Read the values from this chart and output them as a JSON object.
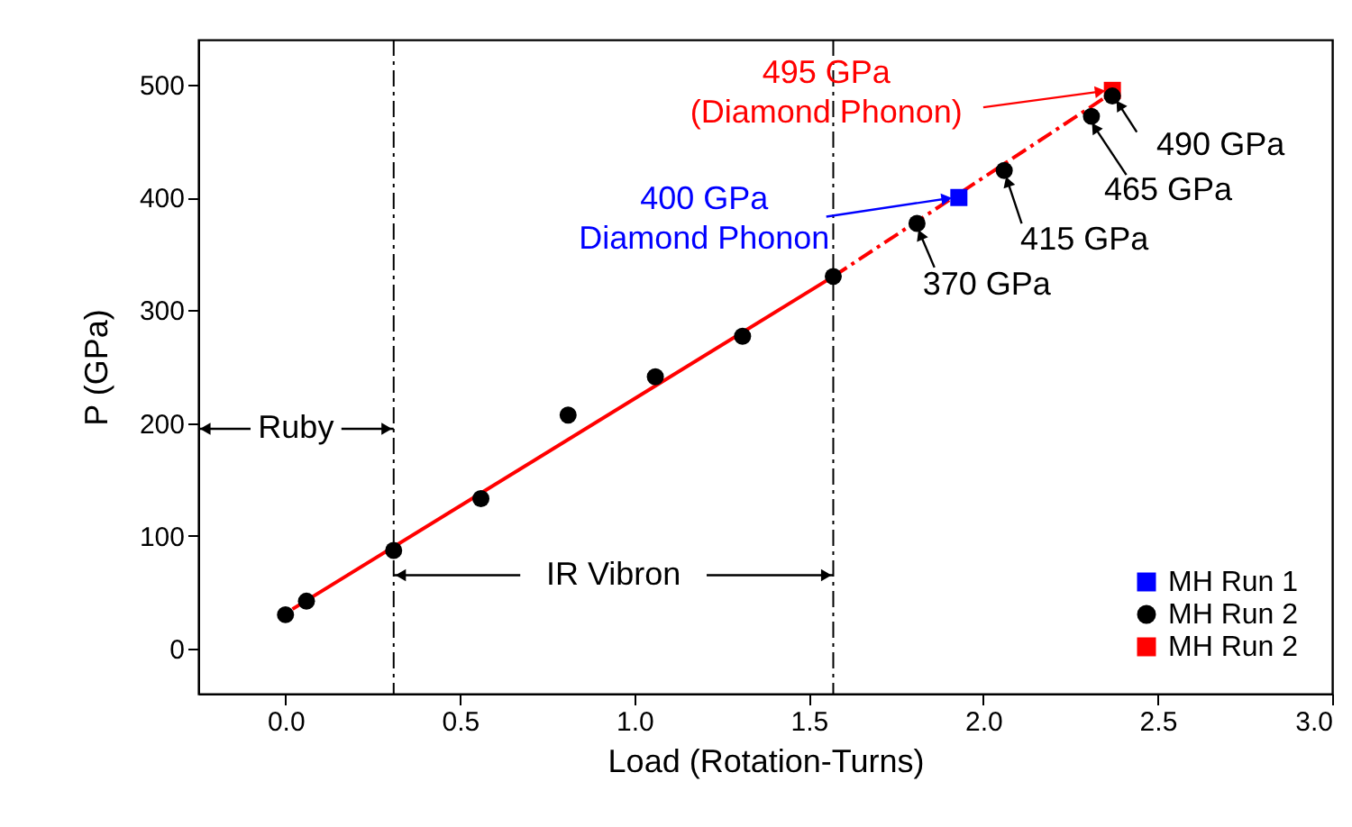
{
  "chart_data": {
    "type": "scatter",
    "xlabel": "Load (Rotation-Turns)",
    "ylabel": "P (GPa)",
    "xlim": [
      -0.25,
      3.0
    ],
    "ylim": [
      -40,
      540
    ],
    "xticks": [
      {
        "value": 0,
        "label": "0.0"
      },
      {
        "value": 0.5,
        "label": "0.5"
      },
      {
        "value": 1,
        "label": "1.0"
      },
      {
        "value": 1.5,
        "label": "1.5"
      },
      {
        "value": 2,
        "label": "2.0"
      },
      {
        "value": 2.5,
        "label": "2.5"
      },
      {
        "value": 3,
        "label": "3.0"
      }
    ],
    "yticks": [
      0,
      100,
      200,
      300,
      400,
      500
    ],
    "grid": false,
    "legend": "bottom right",
    "series": [
      {
        "name": "MH Run 1",
        "type": "scatter",
        "marker": "square",
        "color": "#0000ff",
        "x": [
          1.93
        ],
        "values": [
          400
        ]
      },
      {
        "name": "MH Run 2",
        "type": "scatter",
        "marker": "circle",
        "color": "#000000",
        "x": [
          0.0,
          0.06,
          0.31,
          0.56,
          0.81,
          1.06,
          1.31,
          1.57,
          1.81,
          2.06,
          2.31,
          2.37
        ],
        "values": [
          30,
          42,
          87,
          133,
          207,
          241,
          277,
          330,
          377,
          424,
          472,
          490
        ]
      },
      {
        "name": "MH Run 2",
        "type": "scatter",
        "marker": "square",
        "color": "#ff0000",
        "x": [
          2.37
        ],
        "values": [
          495
        ]
      },
      {
        "type": "line",
        "line_style": "solid",
        "color": "#ff0000",
        "x": [
          0.02,
          1.57
        ],
        "values": [
          35,
          330
        ]
      },
      {
        "type": "line",
        "line_style": "dashed",
        "color": "#ff0000",
        "x": [
          1.57,
          2.37
        ],
        "values": [
          330,
          493
        ]
      }
    ],
    "ref_lines": [
      {
        "axis": "x",
        "value": 0.31,
        "line_style": "dashed",
        "color": "#000000"
      },
      {
        "axis": "x",
        "value": 1.57,
        "line_style": "dashed",
        "color": "#000000"
      }
    ],
    "annotations": [
      {
        "text": "495 GPa\n(Diamond Phonon)",
        "x": 2.37,
        "y": 495
      },
      {
        "text": "400 GPa\nDiamond Phonon",
        "x": 1.93,
        "y": 400
      },
      {
        "text": "370 GPa",
        "x": 1.81,
        "y": 377
      },
      {
        "text": "415 GPa",
        "x": 2.06,
        "y": 424
      },
      {
        "text": "465 GPa",
        "x": 2.31,
        "y": 472
      },
      {
        "text": "490 GPa",
        "x": 2.37,
        "y": 490
      },
      "Ruby",
      {
        "text": "IR Vibron",
        "x": 1.57,
        "y": 65
      }
    ]
  }
}
